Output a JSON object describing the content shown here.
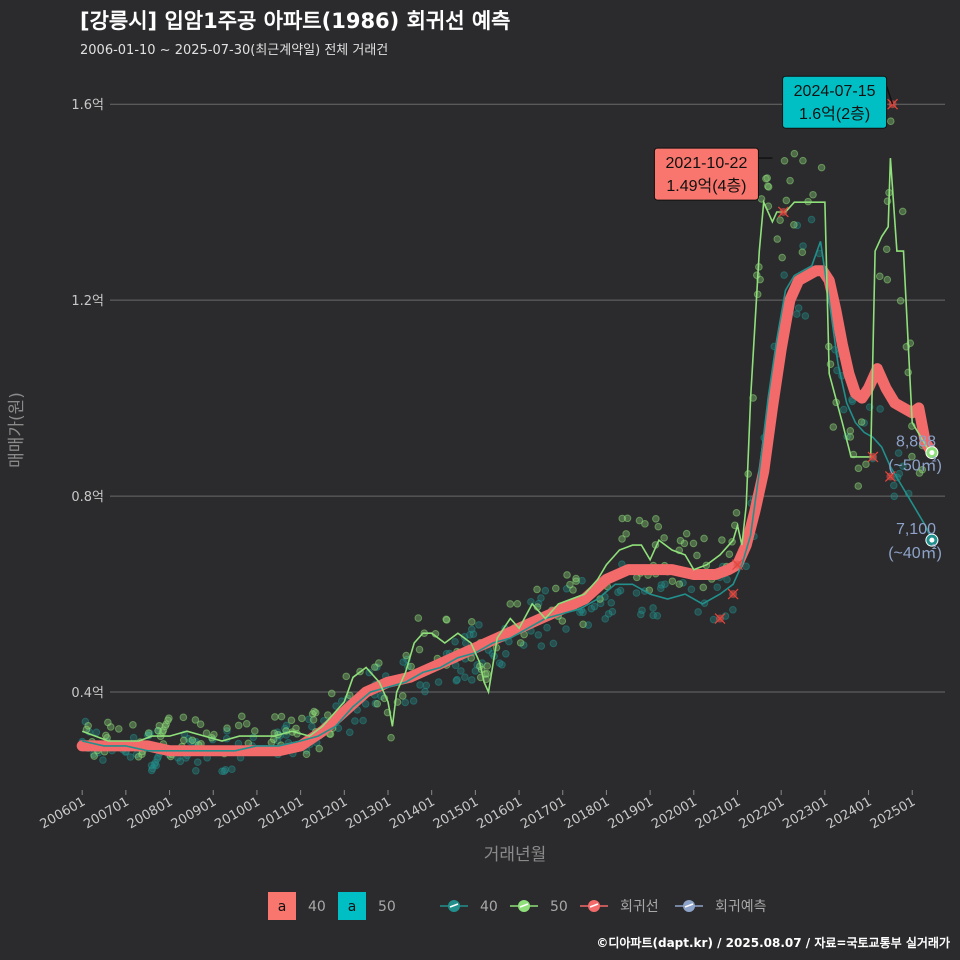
{
  "title": "[강릉시] 입암1주공 아파트(1986) 회귀선 예측",
  "subtitle": "2006-01-10 ~ 2025-07-30(최근계약일) 전체 거래건",
  "caption": "©디아파트(dapt.kr) / 2025.08.07 / 자료=국토교통부 실거래가",
  "colors": {
    "background": "#2b2b2d",
    "grid": "#6a6a6a",
    "s40": "#21908c",
    "s50": "#8fe07a",
    "regression": "#f26a6a",
    "forecast": "#8ea3c9",
    "label40": "#f8766d",
    "label50": "#00bfc4"
  },
  "chart_data": {
    "type": "line",
    "xlabel": "거래년월",
    "ylabel": "매매가(원)",
    "ylim": [
      0.2,
      1.68
    ],
    "y_unit": "억",
    "y_ticks": [
      {
        "value": 0.4,
        "label": "0.4억"
      },
      {
        "value": 0.8,
        "label": "0.8억"
      },
      {
        "value": 1.2,
        "label": "1.2억"
      },
      {
        "value": 1.6,
        "label": "1.6억"
      }
    ],
    "xlim": [
      2005.95,
      2025.75
    ],
    "x_ticks": [
      {
        "value": 2006,
        "label": "200601"
      },
      {
        "value": 2007,
        "label": "200701"
      },
      {
        "value": 2008,
        "label": "200801"
      },
      {
        "value": 2009,
        "label": "200901"
      },
      {
        "value": 2010,
        "label": "201001"
      },
      {
        "value": 2011,
        "label": "201101"
      },
      {
        "value": 2012,
        "label": "201201"
      },
      {
        "value": 2013,
        "label": "201301"
      },
      {
        "value": 2014,
        "label": "201401"
      },
      {
        "value": 2015,
        "label": "201501"
      },
      {
        "value": 2016,
        "label": "201601"
      },
      {
        "value": 2017,
        "label": "201701"
      },
      {
        "value": 2018,
        "label": "201801"
      },
      {
        "value": 2019,
        "label": "201901"
      },
      {
        "value": 2020,
        "label": "202001"
      },
      {
        "value": 2021,
        "label": "202101"
      },
      {
        "value": 2022,
        "label": "202201"
      },
      {
        "value": 2023,
        "label": "202301"
      },
      {
        "value": 2024,
        "label": "202401"
      },
      {
        "value": 2025,
        "label": "202501"
      }
    ],
    "grid": true,
    "legend_position": "bottom",
    "series": [
      {
        "name": "40",
        "key": "s40",
        "x": [
          2006.0,
          2006.5,
          2007.0,
          2007.5,
          2008.0,
          2008.5,
          2009.0,
          2009.5,
          2010.0,
          2010.5,
          2011.0,
          2011.4,
          2011.8,
          2012.2,
          2012.6,
          2013.0,
          2013.4,
          2013.8,
          2014.2,
          2014.6,
          2015.0,
          2015.4,
          2015.8,
          2016.2,
          2016.6,
          2017.0,
          2017.4,
          2017.8,
          2018.2,
          2018.6,
          2019.0,
          2019.4,
          2019.8,
          2020.2,
          2020.6,
          2020.9,
          2021.1,
          2021.3,
          2021.5,
          2021.7,
          2021.9,
          2022.1,
          2022.3,
          2022.5,
          2022.7,
          2022.9,
          2023.1,
          2023.3,
          2023.5,
          2023.7,
          2023.9,
          2024.1,
          2024.3,
          2024.5,
          2024.7,
          2024.9,
          2025.1,
          2025.3,
          2025.45
        ],
        "y": [
          0.3,
          0.29,
          0.29,
          0.28,
          0.28,
          0.28,
          0.28,
          0.28,
          0.29,
          0.29,
          0.3,
          0.31,
          0.33,
          0.37,
          0.4,
          0.41,
          0.42,
          0.44,
          0.45,
          0.47,
          0.48,
          0.5,
          0.51,
          0.53,
          0.55,
          0.56,
          0.57,
          0.59,
          0.62,
          0.62,
          0.6,
          0.59,
          0.6,
          0.58,
          0.6,
          0.62,
          0.66,
          0.72,
          0.85,
          1.0,
          1.12,
          1.22,
          1.25,
          1.26,
          1.27,
          1.32,
          1.2,
          1.07,
          0.99,
          0.95,
          0.93,
          0.92,
          0.9,
          0.86,
          0.83,
          0.8,
          0.77,
          0.74,
          0.71
        ]
      },
      {
        "name": "50",
        "key": "s50",
        "x": [
          2006.0,
          2006.3,
          2006.6,
          2007.0,
          2007.3,
          2007.6,
          2008.0,
          2008.4,
          2008.8,
          2009.2,
          2009.6,
          2010.0,
          2010.4,
          2010.8,
          2011.2,
          2011.5,
          2011.8,
          2012.0,
          2012.2,
          2012.5,
          2012.8,
          2013.0,
          2013.1,
          2013.2,
          2013.4,
          2013.6,
          2013.8,
          2014.0,
          2014.3,
          2014.6,
          2014.9,
          2015.1,
          2015.2,
          2015.3,
          2015.5,
          2015.8,
          2016.0,
          2016.3,
          2016.6,
          2016.9,
          2017.2,
          2017.5,
          2017.8,
          2018.0,
          2018.3,
          2018.6,
          2018.8,
          2019.0,
          2019.2,
          2019.5,
          2019.8,
          2020.0,
          2020.3,
          2020.6,
          2020.9,
          2021.0,
          2021.1,
          2021.2,
          2021.3,
          2021.5,
          2021.6,
          2021.8,
          2021.9,
          2022.1,
          2022.3,
          2022.6,
          2022.8,
          2023.0,
          2023.1,
          2023.4,
          2023.6,
          2023.8,
          2024.0,
          2024.05,
          2024.15,
          2024.3,
          2024.45,
          2024.5,
          2024.65,
          2024.8,
          2025.0,
          2025.2,
          2025.4
        ],
        "y": [
          0.32,
          0.31,
          0.3,
          0.3,
          0.3,
          0.31,
          0.31,
          0.32,
          0.31,
          0.3,
          0.31,
          0.31,
          0.31,
          0.32,
          0.31,
          0.33,
          0.36,
          0.38,
          0.43,
          0.45,
          0.42,
          0.38,
          0.33,
          0.4,
          0.44,
          0.5,
          0.52,
          0.52,
          0.5,
          0.52,
          0.5,
          0.46,
          0.42,
          0.4,
          0.51,
          0.55,
          0.53,
          0.58,
          0.55,
          0.58,
          0.59,
          0.6,
          0.63,
          0.66,
          0.69,
          0.7,
          0.7,
          0.67,
          0.71,
          0.69,
          0.68,
          0.65,
          0.66,
          0.68,
          0.71,
          0.74,
          0.7,
          0.78,
          1.0,
          1.3,
          1.4,
          1.36,
          1.38,
          1.38,
          1.4,
          1.4,
          1.4,
          1.4,
          1.05,
          0.95,
          0.88,
          0.88,
          0.88,
          0.88,
          1.3,
          1.33,
          1.35,
          1.49,
          1.3,
          1.3,
          0.95,
          0.92,
          0.89
        ]
      },
      {
        "name": "회귀선",
        "key": "regression",
        "x": [
          2006.0,
          2006.5,
          2007.0,
          2007.5,
          2008.0,
          2008.5,
          2009.0,
          2009.5,
          2010.0,
          2010.5,
          2011.0,
          2011.5,
          2012.0,
          2012.5,
          2013.0,
          2013.5,
          2014.0,
          2014.5,
          2015.0,
          2015.5,
          2016.0,
          2016.5,
          2017.0,
          2017.5,
          2018.0,
          2018.5,
          2019.0,
          2019.5,
          2020.0,
          2020.5,
          2020.8,
          2021.0,
          2021.2,
          2021.4,
          2021.6,
          2021.8,
          2022.0,
          2022.2,
          2022.4,
          2022.6,
          2022.8,
          2022.95,
          2023.1,
          2023.25,
          2023.4,
          2023.55,
          2023.7,
          2023.85,
          2024.0,
          2024.2,
          2024.4,
          2024.6,
          2024.8,
          2025.0,
          2025.15,
          2025.3,
          2025.45
        ],
        "y": [
          0.29,
          0.29,
          0.29,
          0.29,
          0.28,
          0.28,
          0.28,
          0.28,
          0.28,
          0.28,
          0.29,
          0.32,
          0.36,
          0.4,
          0.42,
          0.43,
          0.45,
          0.47,
          0.49,
          0.51,
          0.53,
          0.55,
          0.57,
          0.59,
          0.63,
          0.65,
          0.65,
          0.65,
          0.64,
          0.64,
          0.65,
          0.66,
          0.7,
          0.77,
          0.85,
          0.98,
          1.1,
          1.2,
          1.24,
          1.25,
          1.26,
          1.26,
          1.24,
          1.18,
          1.11,
          1.05,
          1.01,
          1.0,
          1.02,
          1.06,
          1.02,
          0.99,
          0.98,
          0.97,
          0.98,
          0.91,
          0.89
        ]
      }
    ],
    "forecast": {
      "name": "회귀예측"
    },
    "annotations": [
      {
        "date": "2021-10-22",
        "price": "1.49억(4층)",
        "x": 2021.8,
        "y": 1.49,
        "group": "40"
      },
      {
        "date": "2024-07-15",
        "price": "1.6억(2층)",
        "x": 2024.55,
        "y": 1.6,
        "group": "50"
      }
    ],
    "outliers": [
      {
        "x": 2020.6,
        "y": 0.55
      },
      {
        "x": 2020.9,
        "y": 0.6
      },
      {
        "x": 2021.0,
        "y": 0.66
      },
      {
        "x": 2022.05,
        "y": 1.38
      },
      {
        "x": 2024.5,
        "y": 0.84
      },
      {
        "x": 2024.1,
        "y": 0.88
      },
      {
        "x": 2024.55,
        "y": 1.6
      }
    ],
    "end_labels": [
      {
        "value": "8,888",
        "area": "(~50㎡)",
        "x": 2025.45,
        "y": 0.8888,
        "key": "s50"
      },
      {
        "value": "7,100",
        "area": "(~40㎡)",
        "x": 2025.45,
        "y": 0.71,
        "key": "s40"
      }
    ]
  },
  "legend": {
    "label_groups": [
      {
        "glyph": "a",
        "name": "40",
        "color": "#f8766d"
      },
      {
        "glyph": "a",
        "name": "50",
        "color": "#00bfc4"
      }
    ],
    "line_items": [
      {
        "name": "40",
        "color": "#21908c"
      },
      {
        "name": "50",
        "color": "#8fe07a"
      },
      {
        "name": "회귀선",
        "color": "#f26a6a"
      },
      {
        "name": "회귀예측",
        "color": "#8ea3c9"
      }
    ]
  }
}
